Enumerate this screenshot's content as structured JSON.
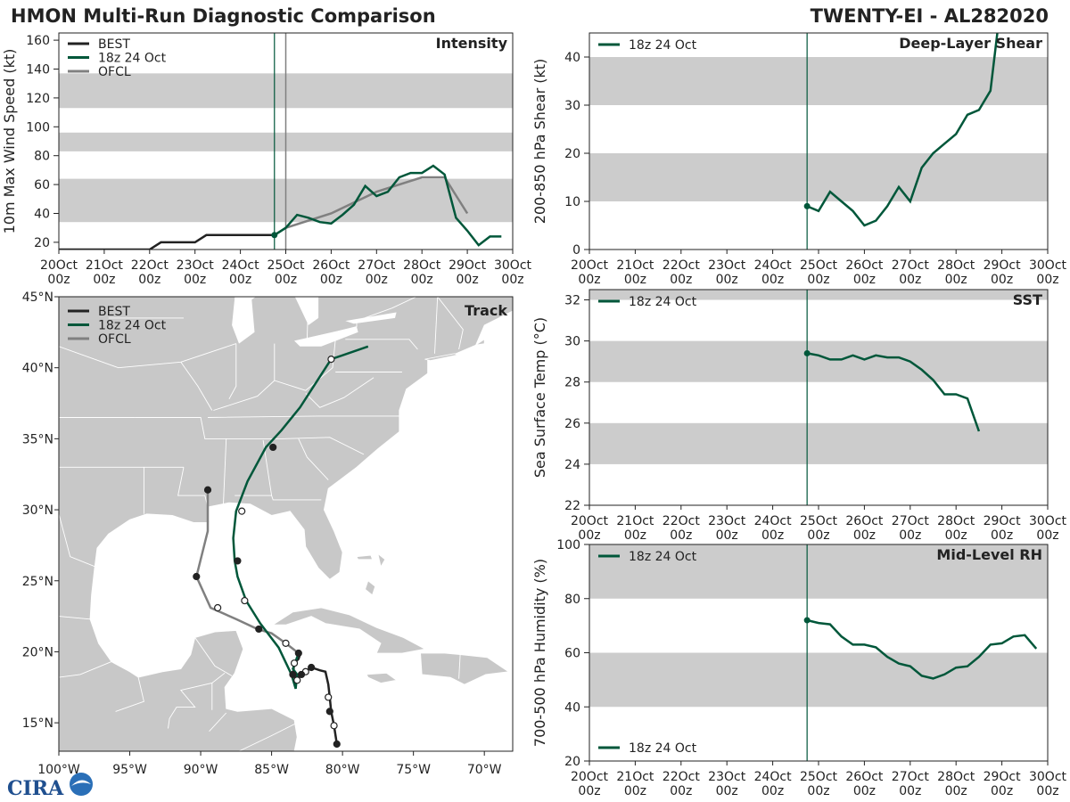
{
  "header": {
    "title_left": "HMON Multi-Run Diagnostic Comparison",
    "title_right": "TWENTY-EI - AL282020"
  },
  "logo": {
    "text": "CIRA"
  },
  "colors": {
    "best": "#222222",
    "run": "#00573a",
    "ofcl": "#808080",
    "band": "#cccccc",
    "land": "#c8c8c8"
  },
  "time_axis": {
    "days": [
      "20Oct",
      "21Oct",
      "22Oct",
      "23Oct",
      "24Oct",
      "25Oct",
      "26Oct",
      "27Oct",
      "28Oct",
      "29Oct",
      "30Oct"
    ],
    "hour": "00z",
    "init_marker_day": 4.75,
    "ofcl_marker_day": 5.0
  },
  "chart_data": [
    {
      "id": "intensity",
      "type": "line",
      "title": "Intensity",
      "ylabel": "10m Max Wind Speed (kt)",
      "ylim": [
        15,
        165
      ],
      "yticks": [
        20,
        40,
        60,
        80,
        100,
        120,
        140,
        160
      ],
      "bands": [
        [
          34,
          64
        ],
        [
          83,
          96
        ],
        [
          113,
          137
        ]
      ],
      "legend": [
        "BEST",
        "18z 24 Oct",
        "OFCL"
      ],
      "series": [
        {
          "name": "BEST",
          "x": [
            0,
            2,
            2.25,
            3,
            3.25,
            4,
            4.75
          ],
          "y": [
            15,
            15,
            20,
            20,
            25,
            25,
            25
          ]
        },
        {
          "name": "OFCL",
          "x": [
            4.75,
            5,
            6,
            7,
            8,
            8.5,
            9
          ],
          "y": [
            25,
            30,
            40,
            55,
            65,
            65,
            40
          ]
        },
        {
          "name": "18z 24 Oct",
          "x": [
            4.75,
            5,
            5.25,
            5.5,
            5.75,
            6,
            6.25,
            6.5,
            6.75,
            7,
            7.25,
            7.5,
            7.75,
            8,
            8.25,
            8.5,
            8.75,
            9,
            9.25,
            9.5,
            9.75
          ],
          "y": [
            25,
            30,
            39,
            37,
            34,
            33,
            39,
            46,
            59,
            52,
            55,
            65,
            68,
            68,
            73,
            67,
            37,
            28,
            18,
            24,
            24
          ]
        }
      ]
    },
    {
      "id": "shear",
      "type": "line",
      "title": "Deep-Layer Shear",
      "ylabel": "200-850 hPa Shear (kt)",
      "ylim": [
        0,
        45
      ],
      "yticks": [
        0,
        10,
        20,
        30,
        40
      ],
      "bands": [
        [
          10,
          20
        ],
        [
          30,
          40
        ]
      ],
      "legend": [
        "18z 24 Oct"
      ],
      "series": [
        {
          "name": "18z 24 Oct",
          "x": [
            4.75,
            5,
            5.25,
            5.5,
            5.75,
            6,
            6.25,
            6.5,
            6.75,
            7,
            7.25,
            7.5,
            7.75,
            8,
            8.25,
            8.5,
            8.75,
            8.9
          ],
          "y": [
            9,
            8,
            12,
            10,
            8,
            5,
            6,
            9,
            13,
            10,
            17,
            20,
            22,
            24,
            28,
            29,
            33,
            45
          ]
        }
      ]
    },
    {
      "id": "sst",
      "type": "line",
      "title": "SST",
      "ylabel": "Sea Surface Temp (°C)",
      "ylim": [
        22,
        32.5
      ],
      "yticks": [
        22,
        24,
        26,
        28,
        30,
        32
      ],
      "bands": [
        [
          24,
          26
        ],
        [
          28,
          30
        ],
        [
          32,
          32.5
        ]
      ],
      "legend": [
        "18z 24 Oct"
      ],
      "series": [
        {
          "name": "18z 24 Oct",
          "x": [
            4.75,
            5,
            5.25,
            5.5,
            5.75,
            6,
            6.25,
            6.5,
            6.75,
            7,
            7.25,
            7.5,
            7.75,
            8,
            8.25,
            8.5
          ],
          "y": [
            29.4,
            29.3,
            29.1,
            29.1,
            29.3,
            29.1,
            29.3,
            29.2,
            29.2,
            29.0,
            28.6,
            28.1,
            27.4,
            27.4,
            27.2,
            25.6
          ]
        }
      ]
    },
    {
      "id": "rh",
      "type": "line",
      "title": "Mid-Level RH",
      "ylabel": "700-500 hPa Humidity (%)",
      "ylim": [
        20,
        100
      ],
      "yticks": [
        20,
        40,
        60,
        80,
        100
      ],
      "bands": [
        [
          40,
          60
        ],
        [
          80,
          100
        ]
      ],
      "legend": [
        "18z 24 Oct"
      ],
      "series": [
        {
          "name": "18z 24 Oct",
          "x": [
            4.75,
            5,
            5.25,
            5.5,
            5.75,
            6,
            6.25,
            6.5,
            6.75,
            7,
            7.25,
            7.5,
            7.75,
            8,
            8.25,
            8.5,
            8.75,
            9,
            9.25,
            9.5,
            9.75
          ],
          "y": [
            72,
            71,
            70.5,
            66,
            63,
            63,
            62,
            58.5,
            56,
            55,
            51.5,
            50.5,
            52,
            54.5,
            55,
            58.5,
            63,
            63.5,
            66,
            66.5,
            61.5
          ]
        }
      ]
    },
    {
      "id": "track",
      "type": "line",
      "title": "Track",
      "xlim": [
        -100,
        -68
      ],
      "ylim": [
        13,
        45
      ],
      "xticks": [
        "100°W",
        "95°W",
        "90°W",
        "85°W",
        "80°W",
        "75°W",
        "70°W"
      ],
      "xtick_values": [
        -100,
        -95,
        -90,
        -85,
        -80,
        -75,
        -70
      ],
      "yticks": [
        "15°N",
        "20°N",
        "25°N",
        "30°N",
        "35°N",
        "40°N",
        "45°N"
      ],
      "ytick_values": [
        15,
        20,
        25,
        30,
        35,
        40,
        45
      ],
      "legend": [
        "BEST",
        "18z 24 Oct",
        "OFCL"
      ],
      "series": [
        {
          "name": "BEST",
          "lon": [
            -80.4,
            -80.6,
            -80.8,
            -80.9,
            -81.0,
            -81.2,
            -81.6,
            -82.2,
            -82.6,
            -83.0,
            -83.2,
            -83.5,
            -83.4,
            -83.1,
            -83.0,
            -83.2
          ],
          "lat": [
            13.5,
            14.8,
            15.8,
            16.8,
            17.7,
            18.6,
            18.7,
            18.9,
            18.6,
            18.4,
            18.0,
            18.4,
            19.2,
            19.5,
            19.8,
            19.9
          ],
          "markers": [
            {
              "lon": -80.4,
              "lat": 13.5,
              "filled": true
            },
            {
              "lon": -80.6,
              "lat": 14.8,
              "filled": false
            },
            {
              "lon": -80.9,
              "lat": 15.8,
              "filled": true
            },
            {
              "lon": -81.0,
              "lat": 16.8,
              "filled": false
            },
            {
              "lon": -82.2,
              "lat": 18.9,
              "filled": true
            },
            {
              "lon": -82.6,
              "lat": 18.6,
              "filled": false
            },
            {
              "lon": -83.2,
              "lat": 18.0,
              "filled": false
            },
            {
              "lon": -83.5,
              "lat": 18.4,
              "filled": true
            },
            {
              "lon": -83.4,
              "lat": 19.2,
              "filled": false
            },
            {
              "lon": -83.1,
              "lat": 19.9,
              "filled": true
            }
          ]
        },
        {
          "name": "OFCL",
          "lon": [
            -83.1,
            -84.0,
            -85.0,
            -86.0,
            -87.5,
            -89.3,
            -90.3,
            -89.5,
            -89.5
          ],
          "lat": [
            19.9,
            20.6,
            21.3,
            21.6,
            22.3,
            23.1,
            25.3,
            28.5,
            31.4
          ],
          "markers": [
            {
              "lon": -84.0,
              "lat": 20.6,
              "filled": false
            },
            {
              "lon": -85.9,
              "lat": 21.6,
              "filled": true
            },
            {
              "lon": -88.8,
              "lat": 23.1,
              "filled": false
            },
            {
              "lon": -90.3,
              "lat": 25.3,
              "filled": true
            },
            {
              "lon": -89.5,
              "lat": 31.4,
              "filled": true
            }
          ]
        },
        {
          "name": "18z 24 Oct",
          "lon": [
            -83.1,
            -83.5,
            -83.2,
            -83.3,
            -83.6,
            -84.5,
            -85.8,
            -86.8,
            -87.4,
            -87.6,
            -87.7,
            -87.5,
            -86.7,
            -85.4,
            -84.3,
            -83.0,
            -81.9,
            -80.8,
            -78.2
          ],
          "lat": [
            19.9,
            18.8,
            18.4,
            17.4,
            18.4,
            20.3,
            22.0,
            23.6,
            25.3,
            26.4,
            28.0,
            29.9,
            32.0,
            34.4,
            35.6,
            37.2,
            38.9,
            40.6,
            41.5
          ],
          "markers": [
            {
              "lon": -87.4,
              "lat": 26.4,
              "filled": true
            },
            {
              "lon": -86.9,
              "lat": 23.6,
              "filled": false
            },
            {
              "lon": -87.1,
              "lat": 29.9,
              "filled": false
            },
            {
              "lon": -84.9,
              "lat": 34.4,
              "filled": true
            },
            {
              "lon": -80.8,
              "lat": 40.6,
              "filled": false
            },
            {
              "lon": -82.9,
              "lat": 18.4,
              "filled": true
            }
          ]
        }
      ]
    }
  ]
}
